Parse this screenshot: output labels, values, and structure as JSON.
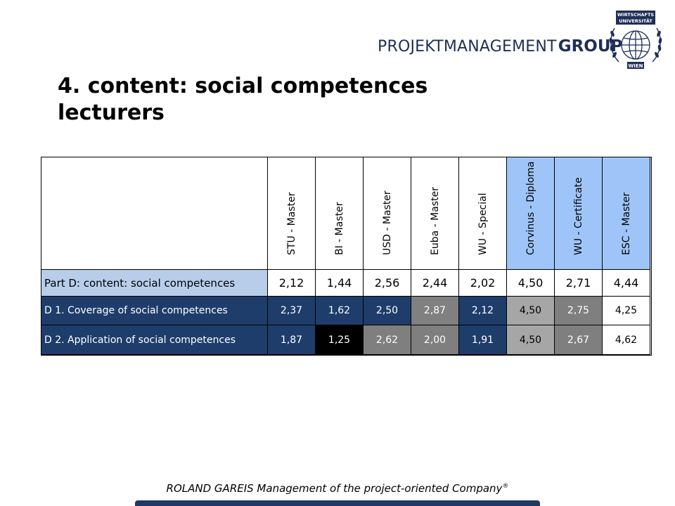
{
  "header": {
    "brand_light": "PROJEKTMANAGEMENT",
    "brand_bold": "GROUP",
    "seal_top": "WIRTSCHAFTS",
    "seal_mid": "UNIVERSITÄT",
    "seal_bottom": "WIEN",
    "brand_color": "#1f2f56"
  },
  "slide": {
    "title_line1": "4. content: social competences",
    "title_line2": "lecturers"
  },
  "table": {
    "columns": [
      "STU - Master",
      "BI - Master",
      "USD - Master",
      "Euba - Master",
      "WU - Special",
      "Corvinus - Diploma",
      "WU - Certificate",
      "ESC - Master"
    ],
    "rows": [
      {
        "label": "Part D: content: social competences",
        "values": [
          "2,12",
          "1,44",
          "2,56",
          "2,44",
          "2,02",
          "4,50",
          "2,71",
          "4,44"
        ]
      },
      {
        "label": "D 1. Coverage of social competences",
        "values": [
          "2,37",
          "1,62",
          "2,50",
          "2,87",
          "2,12",
          "4,50",
          "2,75",
          "4,25"
        ]
      },
      {
        "label": "D 2. Application of social competences",
        "values": [
          "1,87",
          "1,25",
          "2,62",
          "2,00",
          "1,91",
          "4,50",
          "2,67",
          "4,62"
        ]
      }
    ],
    "colors": {
      "header_highlight": "#9fc5f8",
      "summary_label_bg": "#b7cdea",
      "row_label_bg": "#1f3d6b",
      "row1_cells": [
        "#1f3d6b",
        "#1f3d6b",
        "#1f3d6b",
        "#808080",
        "#1f3d6b",
        "#a6a6a6",
        "#7f7f7f",
        "#ffffff"
      ],
      "row2_cells": [
        "#1f3d6b",
        "#000000",
        "#7f7f7f",
        "#7f7f7f",
        "#1f3d6b",
        "#a6a6a6",
        "#7f7f7f",
        "#ffffff"
      ]
    }
  },
  "footer": {
    "text": "ROLAND GAREIS Management of the project-oriented Company",
    "mark": "®"
  }
}
